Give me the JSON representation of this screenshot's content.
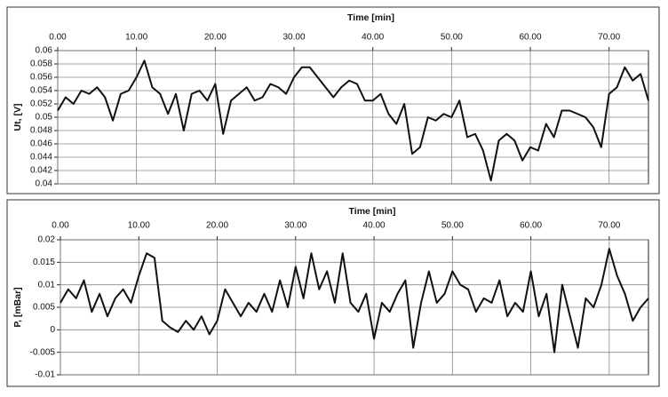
{
  "chart_data": [
    {
      "type": "line",
      "x_label": "Time [min]",
      "y_label": "Ut, [V]",
      "color": "#111111",
      "grid": true,
      "x": [
        0,
        1,
        2,
        3,
        4,
        5,
        6,
        7,
        8,
        9,
        10,
        11,
        12,
        13,
        14,
        15,
        16,
        17,
        18,
        19,
        20,
        21,
        22,
        23,
        24,
        25,
        26,
        27,
        28,
        29,
        30,
        31,
        32,
        33,
        34,
        35,
        36,
        37,
        38,
        39,
        40,
        41,
        42,
        43,
        44,
        45,
        46,
        47,
        48,
        49,
        50,
        51,
        52,
        53,
        54,
        55,
        56,
        57,
        58,
        59,
        60,
        61,
        62,
        63,
        64,
        65,
        66,
        67,
        68,
        69,
        70,
        71,
        72,
        73,
        74,
        75
      ],
      "values": [
        0.051,
        0.053,
        0.052,
        0.054,
        0.0535,
        0.0545,
        0.053,
        0.0495,
        0.0535,
        0.054,
        0.056,
        0.0585,
        0.0545,
        0.0535,
        0.0505,
        0.0535,
        0.048,
        0.0535,
        0.054,
        0.0525,
        0.055,
        0.0475,
        0.0525,
        0.0535,
        0.0545,
        0.0525,
        0.053,
        0.055,
        0.0545,
        0.0535,
        0.056,
        0.0575,
        0.0575,
        0.056,
        0.0545,
        0.053,
        0.0545,
        0.0555,
        0.055,
        0.0525,
        0.0525,
        0.0535,
        0.0505,
        0.049,
        0.052,
        0.0445,
        0.0455,
        0.05,
        0.0495,
        0.0505,
        0.05,
        0.0525,
        0.047,
        0.0475,
        0.045,
        0.0405,
        0.0465,
        0.0475,
        0.0465,
        0.0435,
        0.0455,
        0.045,
        0.049,
        0.047,
        0.051,
        0.051,
        0.0505,
        0.05,
        0.0485,
        0.0455,
        0.0535,
        0.0545,
        0.0575,
        0.0555,
        0.0565,
        0.0525
      ],
      "xlim": [
        0,
        75
      ],
      "xticks": [
        {
          "value": 0,
          "label": "0.00"
        },
        {
          "value": 10,
          "label": "10.00"
        },
        {
          "value": 20,
          "label": "20.00"
        },
        {
          "value": 30,
          "label": "30.00"
        },
        {
          "value": 40,
          "label": "40.00"
        },
        {
          "value": 50,
          "label": "50.00"
        },
        {
          "value": 60,
          "label": "60.00"
        },
        {
          "value": 70,
          "label": "70.00"
        }
      ],
      "ylim": [
        0.04,
        0.06
      ],
      "yticks": [
        0.04,
        0.042,
        0.044,
        0.046,
        0.048,
        0.05,
        0.052,
        0.054,
        0.056,
        0.058,
        0.06
      ]
    },
    {
      "type": "line",
      "x_label": "Time [min]",
      "y_label": "P, [mBar]",
      "color": "#111111",
      "grid": true,
      "x": [
        0,
        1,
        2,
        3,
        4,
        5,
        6,
        7,
        8,
        9,
        10,
        11,
        12,
        13,
        14,
        15,
        16,
        17,
        18,
        19,
        20,
        21,
        22,
        23,
        24,
        25,
        26,
        27,
        28,
        29,
        30,
        31,
        32,
        33,
        34,
        35,
        36,
        37,
        38,
        39,
        40,
        41,
        42,
        43,
        44,
        45,
        46,
        47,
        48,
        49,
        50,
        51,
        52,
        53,
        54,
        55,
        56,
        57,
        58,
        59,
        60,
        61,
        62,
        63,
        64,
        65,
        66,
        67,
        68,
        69,
        70,
        71,
        72,
        73,
        74,
        75
      ],
      "values": [
        0.006,
        0.009,
        0.007,
        0.011,
        0.004,
        0.008,
        0.003,
        0.007,
        0.009,
        0.006,
        0.012,
        0.017,
        0.016,
        0.002,
        0.0005,
        -0.0005,
        0.002,
        0,
        0.003,
        -0.001,
        0.002,
        0.009,
        0.006,
        0.003,
        0.006,
        0.004,
        0.008,
        0.004,
        0.011,
        0.005,
        0.014,
        0.007,
        0.017,
        0.009,
        0.013,
        0.006,
        0.017,
        0.006,
        0.004,
        0.008,
        -0.002,
        0.006,
        0.004,
        0.008,
        0.011,
        -0.004,
        0.006,
        0.013,
        0.006,
        0.008,
        0.013,
        0.01,
        0.009,
        0.004,
        0.007,
        0.006,
        0.011,
        0.003,
        0.006,
        0.004,
        0.013,
        0.003,
        0.008,
        -0.005,
        0.01,
        0.003,
        -0.004,
        0.007,
        0.005,
        0.01,
        0.018,
        0.012,
        0.008,
        0.002,
        0.005,
        0.007
      ],
      "xlim": [
        0,
        75
      ],
      "xticks": [
        {
          "value": 0,
          "label": "0.00"
        },
        {
          "value": 10,
          "label": "10.00"
        },
        {
          "value": 20,
          "label": "20.00"
        },
        {
          "value": 30,
          "label": "30.00"
        },
        {
          "value": 40,
          "label": "40.00"
        },
        {
          "value": 50,
          "label": "50.00"
        },
        {
          "value": 60,
          "label": "60.00"
        },
        {
          "value": 70,
          "label": "70.00"
        }
      ],
      "ylim": [
        -0.01,
        0.02
      ],
      "yticks": [
        -0.01,
        -0.005,
        0,
        0.005,
        0.01,
        0.015,
        0.02
      ]
    }
  ]
}
